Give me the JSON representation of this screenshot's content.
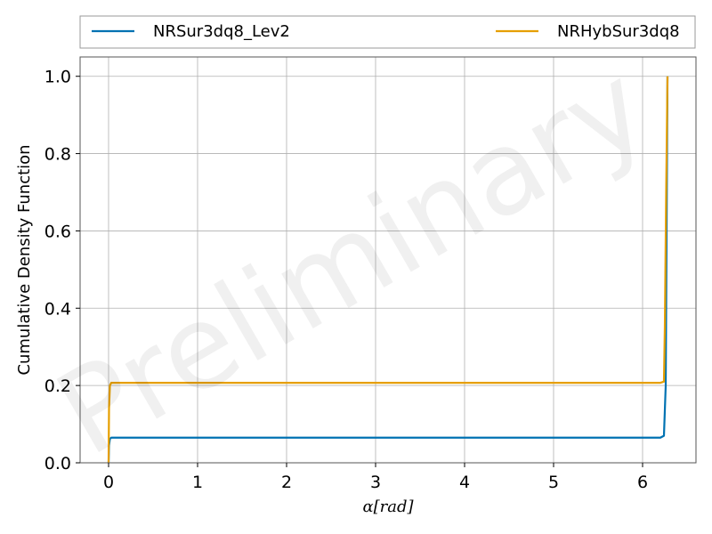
{
  "chart_data": {
    "type": "line",
    "title": "",
    "xlabel": "α[rad]",
    "ylabel": "Cumulative Density Function",
    "xlim": [
      -0.32,
      6.6
    ],
    "ylim": [
      0.0,
      1.05
    ],
    "xticks": [
      0,
      1,
      2,
      3,
      4,
      5,
      6
    ],
    "yticks": [
      0.0,
      0.2,
      0.4,
      0.6,
      0.8,
      1.0
    ],
    "xtick_labels": [
      "0",
      "1",
      "2",
      "3",
      "4",
      "5",
      "6"
    ],
    "ytick_labels": [
      "0.0",
      "0.2",
      "0.4",
      "0.6",
      "0.8",
      "1.0"
    ],
    "grid": true,
    "legend_position": "top",
    "watermark": "Preliminary",
    "series": [
      {
        "name": "NRSur3dq8_Lev2",
        "color": "#0072b2",
        "x": [
          0.0,
          0.005,
          0.015,
          0.03,
          0.1,
          1.0,
          2.0,
          3.0,
          4.0,
          5.0,
          6.0,
          6.2,
          6.24,
          6.26,
          6.27,
          6.28
        ],
        "y": [
          0.0,
          0.045,
          0.062,
          0.065,
          0.065,
          0.065,
          0.065,
          0.065,
          0.065,
          0.065,
          0.065,
          0.065,
          0.07,
          0.2,
          0.6,
          1.0
        ]
      },
      {
        "name": "NRHybSur3dq8",
        "color": "#e69f00",
        "x": [
          0.0,
          0.005,
          0.015,
          0.03,
          0.1,
          1.0,
          2.0,
          3.0,
          4.0,
          5.0,
          6.0,
          6.2,
          6.24,
          6.25,
          6.265,
          6.28
        ],
        "y": [
          0.0,
          0.14,
          0.2,
          0.207,
          0.207,
          0.207,
          0.207,
          0.207,
          0.207,
          0.207,
          0.207,
          0.207,
          0.21,
          0.35,
          0.7,
          1.0
        ]
      }
    ]
  }
}
